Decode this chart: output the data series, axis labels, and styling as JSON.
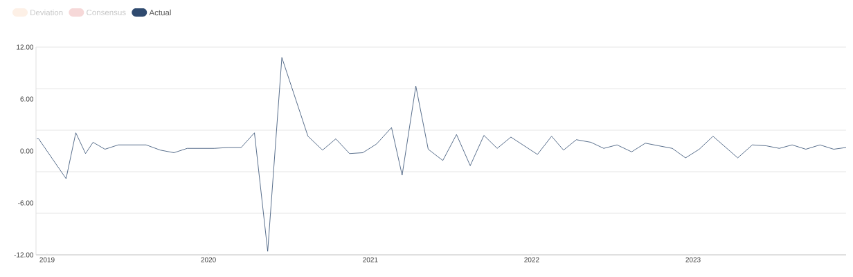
{
  "chart_data": {
    "type": "line",
    "x": [
      "2018-12-09",
      "2018-12-13",
      "2019-02-13",
      "2019-03-07",
      "2019-03-29",
      "2019-04-15",
      "2019-05-12",
      "2019-06-11",
      "2019-07-14",
      "2019-08-13",
      "2019-09-14",
      "2019-10-15",
      "2019-11-14",
      "2019-12-15",
      "2020-01-14",
      "2020-02-14",
      "2020-03-15",
      "2020-04-14",
      "2020-05-14",
      "2020-06-15",
      "2020-08-13",
      "2020-09-15",
      "2020-10-15",
      "2020-11-15",
      "2020-12-15",
      "2021-01-15",
      "2021-02-18",
      "2021-03-14",
      "2021-04-14",
      "2021-05-12",
      "2021-06-14",
      "2021-07-15",
      "2021-08-15",
      "2021-09-15",
      "2021-10-15",
      "2021-11-15",
      "2022-01-14",
      "2022-02-15",
      "2022-03-14",
      "2022-04-12",
      "2022-05-15",
      "2022-06-13",
      "2022-07-13",
      "2022-08-15",
      "2022-09-15",
      "2022-10-15",
      "2022-11-15",
      "2022-12-15",
      "2023-01-15",
      "2023-02-15",
      "2023-04-12",
      "2023-05-15",
      "2023-06-15",
      "2023-07-15",
      "2023-08-13",
      "2023-09-13",
      "2023-10-15",
      "2023-11-15",
      "2023-12-13"
    ],
    "series": [
      {
        "name": "Deviation",
        "color": "#fdf0e6",
        "values": [
          null,
          null,
          null,
          null,
          null,
          null,
          null,
          null,
          null,
          null,
          null,
          null,
          null,
          null,
          null,
          null,
          null,
          null,
          null,
          null,
          null,
          null,
          null,
          null,
          null,
          null,
          null,
          null,
          null,
          null,
          null,
          null,
          null,
          null,
          null,
          null,
          null,
          null,
          null,
          null,
          null,
          null,
          null,
          null,
          null,
          null,
          null,
          null,
          null,
          null,
          null,
          null,
          null,
          null,
          null,
          null,
          null,
          null,
          null
        ]
      },
      {
        "name": "Consensus",
        "color": "#f6d8d8",
        "values": [
          null,
          null,
          null,
          null,
          null,
          null,
          null,
          null,
          null,
          null,
          null,
          null,
          null,
          null,
          null,
          null,
          null,
          null,
          null,
          null,
          null,
          null,
          null,
          null,
          null,
          null,
          null,
          null,
          null,
          null,
          null,
          null,
          null,
          null,
          null,
          null,
          null,
          null,
          null,
          null,
          null,
          null,
          null,
          null,
          null,
          null,
          null,
          null,
          null,
          null,
          null,
          null,
          null,
          null,
          null,
          null,
          null,
          null,
          null
        ]
      },
      {
        "name": "Actual",
        "color": "#2f4a6f",
        "values": [
          1.4,
          1.4,
          -3.2,
          2.1,
          -0.3,
          1.0,
          0.2,
          0.7,
          0.7,
          0.7,
          0.1,
          -0.2,
          0.3,
          0.3,
          0.3,
          0.4,
          0.4,
          2.1,
          -11.6,
          10.8,
          1.7,
          0.1,
          1.4,
          -0.3,
          -0.2,
          0.8,
          2.7,
          -2.8,
          7.5,
          0.2,
          -1.1,
          1.9,
          -1.7,
          1.8,
          0.3,
          1.6,
          -0.4,
          1.7,
          0.1,
          1.3,
          1.0,
          0.3,
          0.7,
          -0.1,
          0.9,
          0.6,
          0.3,
          -0.8,
          0.2,
          1.7,
          -0.8,
          0.7,
          0.6,
          0.3,
          0.7,
          0.2,
          0.7,
          0.2,
          0.4
        ]
      }
    ],
    "xlim": [
      "2018-12-07",
      "2023-12-13"
    ],
    "xticks": [
      "2019",
      "2020",
      "2021",
      "2022",
      "2023"
    ],
    "ylim": [
      -12,
      12
    ],
    "yticks": [
      {
        "value": 12,
        "label": "12.00"
      },
      {
        "value": 7.2,
        "label": null
      },
      {
        "value": 6,
        "label": "6.00"
      },
      {
        "value": 2.4,
        "label": null
      },
      {
        "value": 0,
        "label": "0.00"
      },
      {
        "value": -2.4,
        "label": null
      },
      {
        "value": -6,
        "label": "-6.00"
      },
      {
        "value": -7.2,
        "label": null
      },
      {
        "value": -12,
        "label": "-12.00"
      }
    ],
    "grid": "y",
    "legend": "top left",
    "marker": "none",
    "line_style": "solid"
  }
}
